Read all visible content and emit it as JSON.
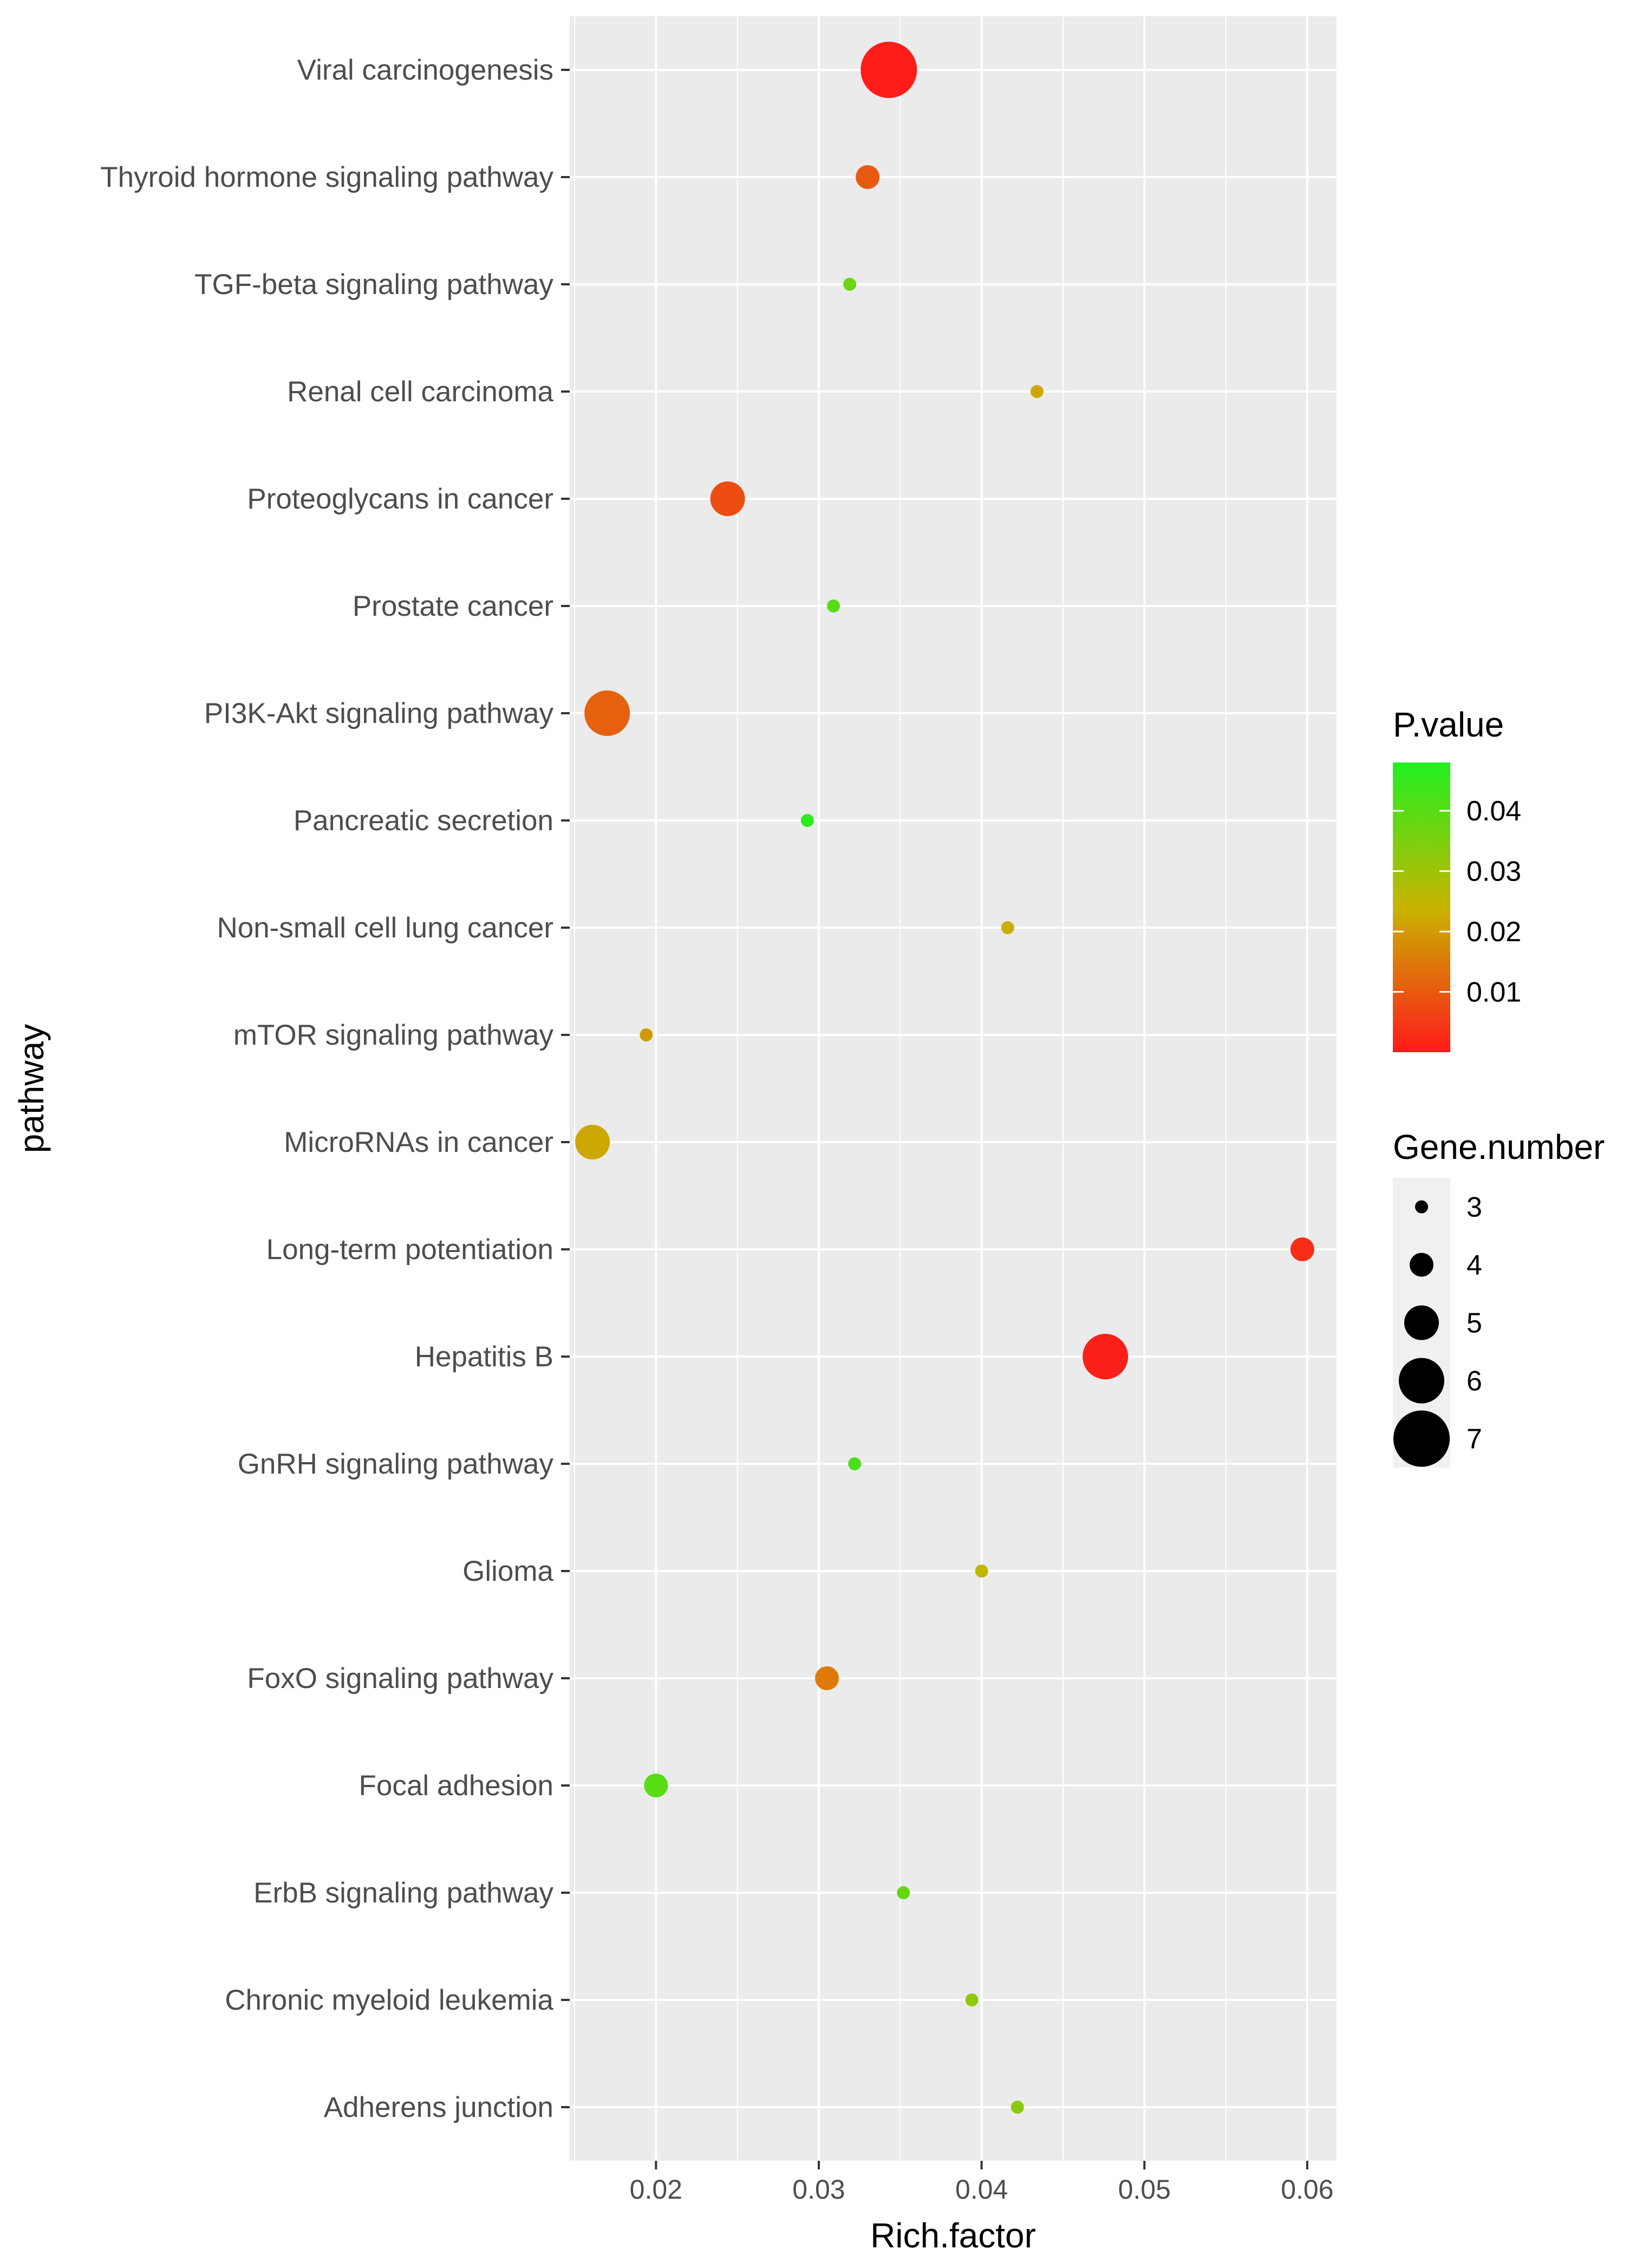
{
  "chart_data": {
    "type": "scatter",
    "title": "",
    "xlabel": "Rich.factor",
    "ylabel": "pathway",
    "xlim": [
      0.0147,
      0.0618
    ],
    "xticks": [
      0.02,
      0.03,
      0.04,
      0.05,
      0.06
    ],
    "xtick_labels": [
      "0.02",
      "0.03",
      "0.04",
      "0.05",
      "0.06"
    ],
    "grid": true,
    "categories": [
      "Viral carcinogenesis",
      "Thyroid hormone signaling pathway",
      "TGF-beta signaling pathway",
      "Renal cell carcinoma",
      "Proteoglycans in cancer",
      "Prostate cancer",
      "PI3K-Akt signaling pathway",
      "Pancreatic secretion",
      "Non-small cell lung cancer",
      "mTOR signaling pathway",
      "MicroRNAs in cancer",
      "Long-term potentiation",
      "Hepatitis B",
      "GnRH signaling pathway",
      "Glioma",
      "FoxO signaling pathway",
      "Focal adhesion",
      "ErbB signaling pathway",
      "Chronic myeloid leukemia",
      "Adherens junction"
    ],
    "points": [
      {
        "pathway": "Viral carcinogenesis",
        "rich_factor": 0.0343,
        "gene_number": 7,
        "p_value": 0.0005
      },
      {
        "pathway": "Thyroid hormone signaling pathway",
        "rich_factor": 0.033,
        "gene_number": 4,
        "p_value": 0.01
      },
      {
        "pathway": "TGF-beta signaling pathway",
        "rich_factor": 0.0319,
        "gene_number": 3,
        "p_value": 0.037
      },
      {
        "pathway": "Renal cell carcinoma",
        "rich_factor": 0.0434,
        "gene_number": 3,
        "p_value": 0.022
      },
      {
        "pathway": "Proteoglycans in cancer",
        "rich_factor": 0.0244,
        "gene_number": 5,
        "p_value": 0.008
      },
      {
        "pathway": "Prostate cancer",
        "rich_factor": 0.0309,
        "gene_number": 3,
        "p_value": 0.04
      },
      {
        "pathway": "PI3K-Akt signaling pathway",
        "rich_factor": 0.017,
        "gene_number": 6,
        "p_value": 0.011
      },
      {
        "pathway": "Pancreatic secretion",
        "rich_factor": 0.0293,
        "gene_number": 3,
        "p_value": 0.046
      },
      {
        "pathway": "Non-small cell lung cancer",
        "rich_factor": 0.0416,
        "gene_number": 3,
        "p_value": 0.023
      },
      {
        "pathway": "mTOR signaling pathway",
        "rich_factor": 0.0194,
        "gene_number": 3,
        "p_value": 0.02
      },
      {
        "pathway": "MicroRNAs in cancer",
        "rich_factor": 0.0161,
        "gene_number": 5,
        "p_value": 0.022
      },
      {
        "pathway": "Long-term potentiation",
        "rich_factor": 0.0597,
        "gene_number": 4,
        "p_value": 0.003
      },
      {
        "pathway": "Hepatitis B",
        "rich_factor": 0.0476,
        "gene_number": 6,
        "p_value": 0.0008
      },
      {
        "pathway": "GnRH signaling pathway",
        "rich_factor": 0.0322,
        "gene_number": 3,
        "p_value": 0.042
      },
      {
        "pathway": "Glioma",
        "rich_factor": 0.04,
        "gene_number": 3,
        "p_value": 0.025
      },
      {
        "pathway": "FoxO signaling pathway",
        "rich_factor": 0.0305,
        "gene_number": 4,
        "p_value": 0.015
      },
      {
        "pathway": "Focal adhesion",
        "rich_factor": 0.02,
        "gene_number": 4,
        "p_value": 0.04
      },
      {
        "pathway": "ErbB signaling pathway",
        "rich_factor": 0.0352,
        "gene_number": 3,
        "p_value": 0.038
      },
      {
        "pathway": "Chronic myeloid leukemia",
        "rich_factor": 0.0394,
        "gene_number": 3,
        "p_value": 0.032
      },
      {
        "pathway": "Adherens junction",
        "rich_factor": 0.0422,
        "gene_number": 3,
        "p_value": 0.033
      }
    ],
    "color_legend": {
      "title": "P.value",
      "range": [
        0.0,
        0.048
      ],
      "ticks": [
        0.04,
        0.03,
        0.02,
        0.01
      ],
      "tick_labels": [
        "0.04",
        "0.03",
        "0.02",
        "0.01"
      ],
      "low_color": "#ff1a1a",
      "mid_color": "#c8b400",
      "high_color": "#20f020"
    },
    "size_legend": {
      "title": "Gene.number",
      "values": [
        3,
        4,
        5,
        6,
        7
      ],
      "labels": [
        "3",
        "4",
        "5",
        "6",
        "7"
      ]
    },
    "colors": {
      "panel_background": "#ebebeb",
      "grid_line": "#ffffff",
      "axis_text": "#4d4d4d"
    }
  }
}
